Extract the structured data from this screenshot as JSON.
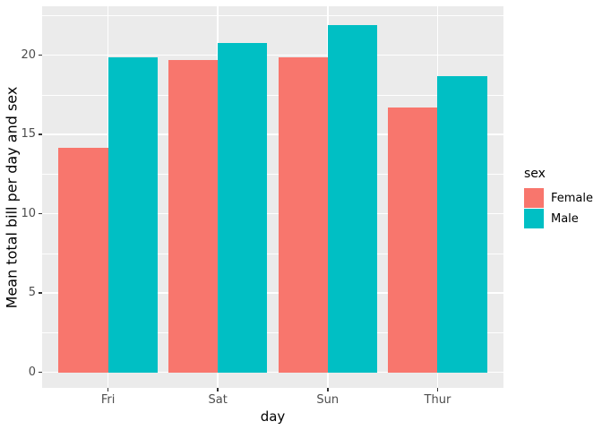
{
  "chart_data": {
    "type": "bar",
    "grouped": true,
    "categories": [
      "Fri",
      "Sat",
      "Sun",
      "Thur"
    ],
    "series": [
      {
        "name": "Female",
        "color": "#F8766D",
        "values": [
          14.15,
          19.68,
          19.87,
          16.72
        ]
      },
      {
        "name": "Male",
        "color": "#00BFC4",
        "values": [
          19.86,
          20.8,
          21.89,
          18.71
        ]
      }
    ],
    "xlabel": "day",
    "ylabel": "Mean total bill per day and sex",
    "y_major_ticks": [
      0,
      5,
      10,
      15,
      20
    ],
    "y_minor_ticks": [
      2.5,
      7.5,
      12.5,
      17.5,
      22.5
    ],
    "ylim": [
      -1.1,
      23.1
    ],
    "grid": "major-and-minor-horizontal, major-vertical-at-categories",
    "legend": {
      "title": "sex",
      "position": "right"
    },
    "colors": {
      "panel_background": "#EBEBEB",
      "gridline": "#FFFFFF",
      "tick_mark": "#333333",
      "tick_label": "#4D4D4D",
      "axis_title": "#000000",
      "figure_background": "#FFFFFF"
    }
  }
}
